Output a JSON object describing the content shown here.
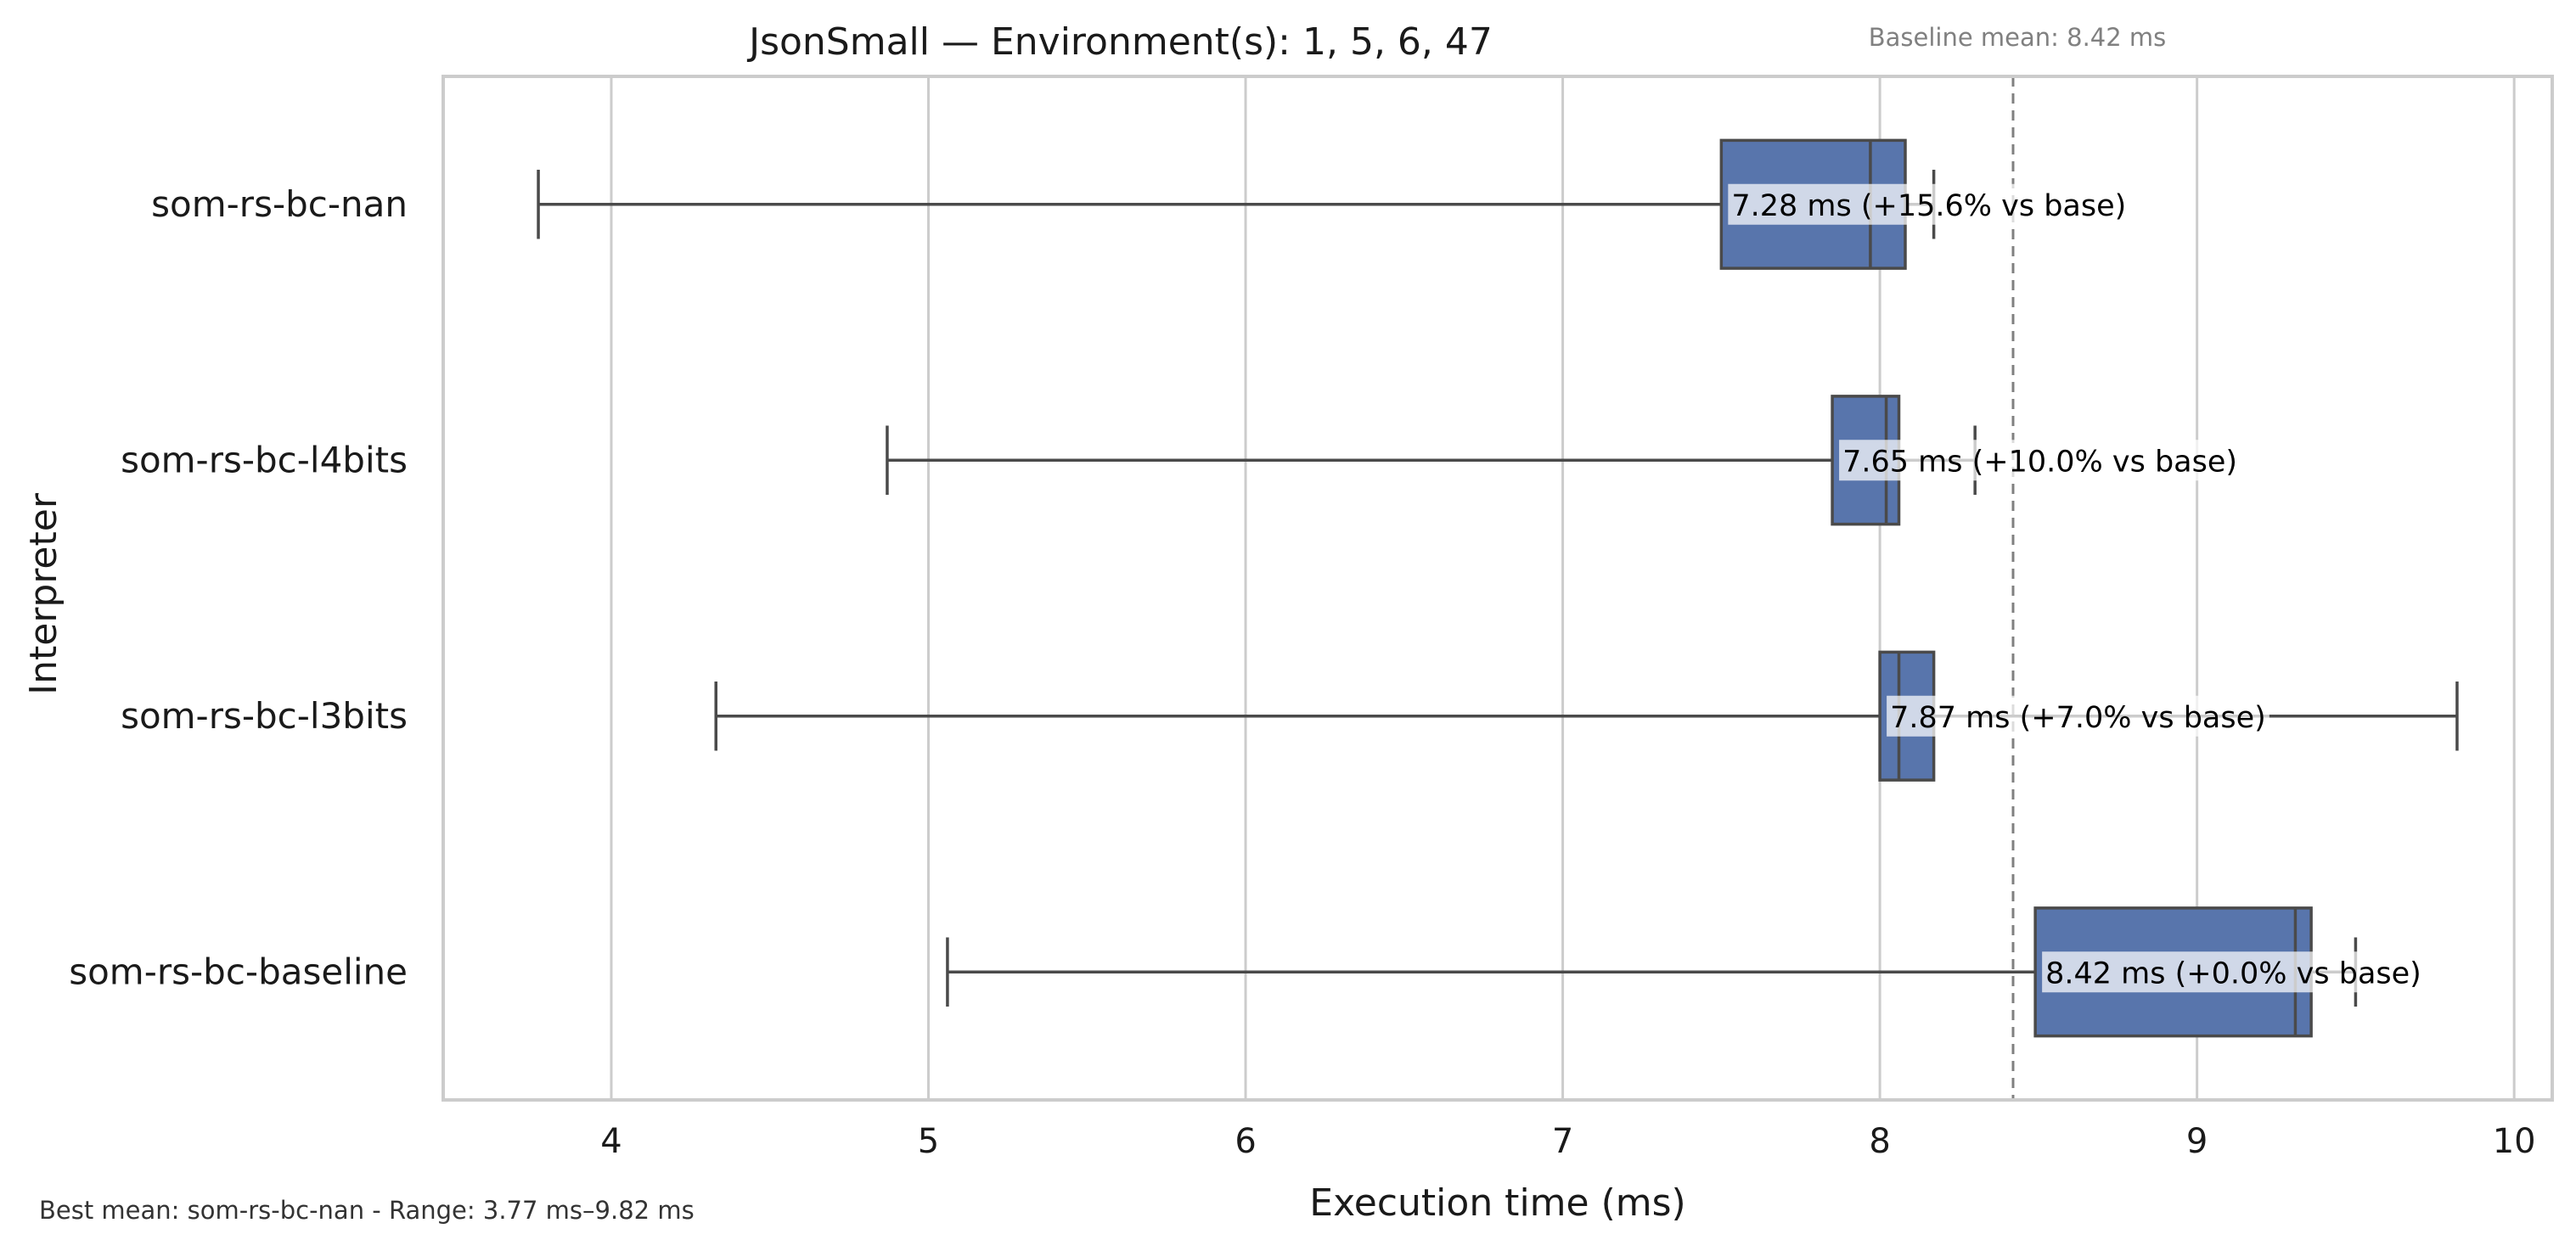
{
  "chart_data": {
    "type": "box",
    "title": "JsonSmall — Environment(s): 1, 5, 6, 47",
    "xlabel": "Execution time (ms)",
    "ylabel": "Interpreter",
    "xlim": [
      3.47,
      10.12
    ],
    "xticks": [
      4,
      5,
      6,
      7,
      8,
      9,
      10
    ],
    "orientation": "horizontal",
    "grid": "vertical",
    "box_color": "#5875ac",
    "baseline": {
      "value": 8.42,
      "label": "Baseline mean: 8.42 ms",
      "style": "dashed"
    },
    "categories": [
      "som-rs-bc-nan",
      "som-rs-bc-l4bits",
      "som-rs-bc-l3bits",
      "som-rs-bc-baseline"
    ],
    "boxes": [
      {
        "name": "som-rs-bc-nan",
        "whisker_low": 3.77,
        "q1": 7.5,
        "median": 7.97,
        "q3": 8.08,
        "whisker_high": 8.17,
        "label": "7.28 ms  (+15.6% vs base)"
      },
      {
        "name": "som-rs-bc-l4bits",
        "whisker_low": 4.87,
        "q1": 7.85,
        "median": 8.02,
        "q3": 8.06,
        "whisker_high": 8.3,
        "label": "7.65 ms  (+10.0% vs base)"
      },
      {
        "name": "som-rs-bc-l3bits",
        "whisker_low": 4.33,
        "q1": 8.0,
        "median": 8.06,
        "q3": 8.17,
        "whisker_high": 9.82,
        "label": "7.87 ms  (+7.0% vs base)"
      },
      {
        "name": "som-rs-bc-baseline",
        "whisker_low": 5.06,
        "q1": 8.49,
        "median": 9.31,
        "q3": 9.36,
        "whisker_high": 9.5,
        "label": "8.42 ms  (+0.0% vs base)"
      }
    ],
    "footnote": "Best mean: som-rs-bc-nan - Range: 3.77 ms–9.82 ms"
  }
}
